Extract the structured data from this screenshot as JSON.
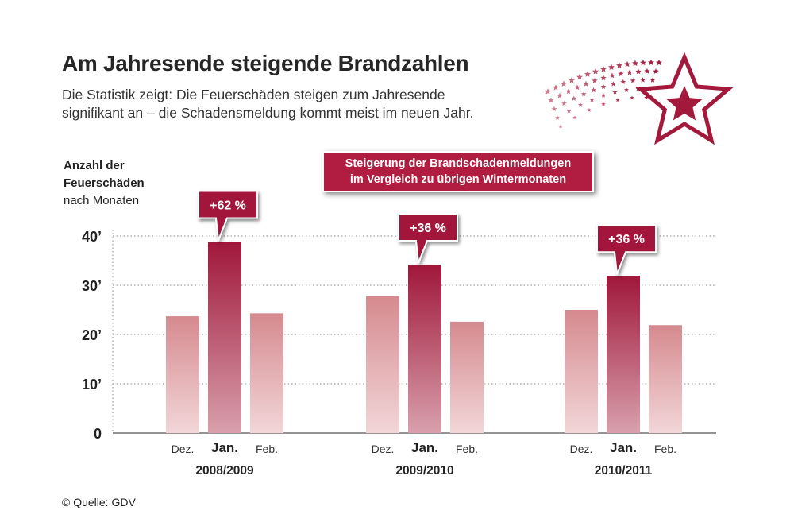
{
  "header": {
    "title": "Am Jahresende steigende Brandzahlen",
    "subtitle_line1": "Die Statistik zeigt: Die Feuerschäden steigen zum Jahresende",
    "subtitle_line2": "signifikant an – die Schadensmeldung kommt meist im neuen Jahr."
  },
  "ylabel": {
    "line1": "Anzahl der",
    "line2": "Feuerschäden",
    "line3": "nach Monaten"
  },
  "infobox": {
    "line1": "Steigerung der Brandschadenmeldungen",
    "line2": "im Vergleich zu übrigen Wintermonaten"
  },
  "source": "© Quelle: GDV",
  "colors": {
    "accent": "#a3193b",
    "jan_bar_top": "#a0173a",
    "jan_bar_bottom": "#d8a0ac",
    "other_bar_top": "#d58a8f",
    "other_bar_bottom": "#f2d6d8"
  },
  "chart_data": {
    "type": "bar",
    "y_ticks": [
      "0",
      "10’",
      "20’",
      "30’",
      "40’"
    ],
    "y_tick_values": [
      0,
      10,
      20,
      30,
      40
    ],
    "ylim": [
      0,
      40
    ],
    "grid": "dotted horizontal",
    "months": [
      "Dez.",
      "Jan.",
      "Feb."
    ],
    "groups": [
      {
        "label": "2008/2009",
        "values": [
          23.7,
          38.8,
          24.3
        ],
        "increase": "+62 %"
      },
      {
        "label": "2009/2010",
        "values": [
          27.8,
          34.2,
          22.6
        ],
        "increase": "+36 %"
      },
      {
        "label": "2010/2011",
        "values": [
          25.0,
          31.9,
          21.9
        ],
        "increase": "+36 %"
      }
    ]
  }
}
